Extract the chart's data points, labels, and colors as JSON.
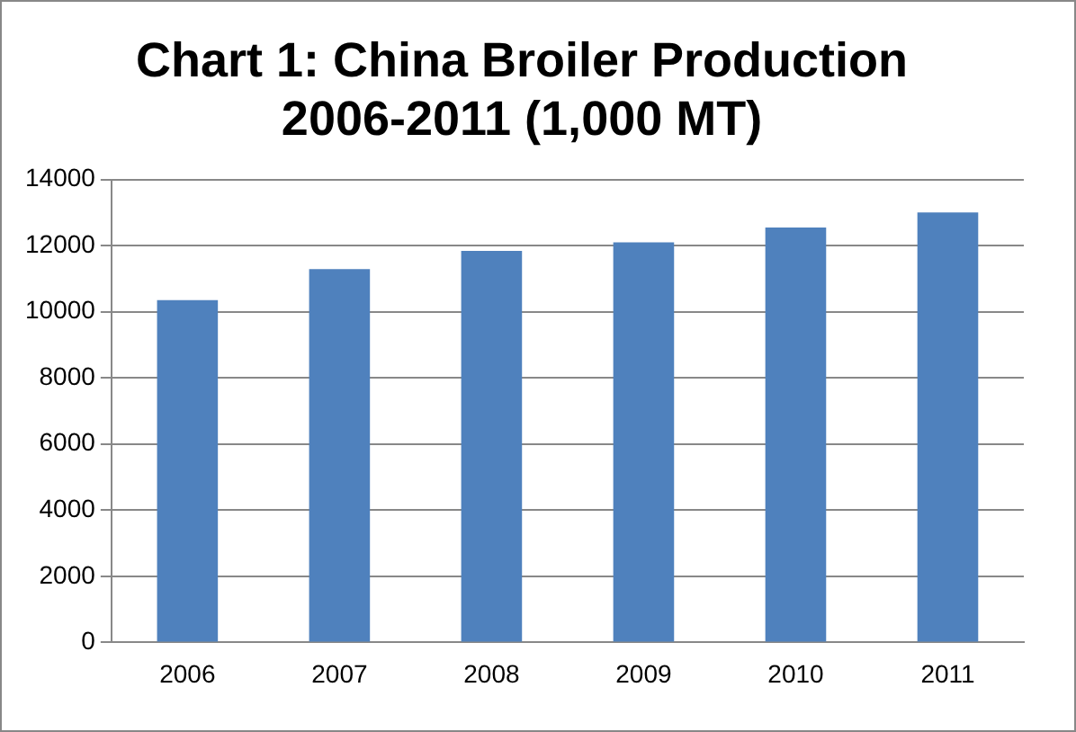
{
  "chart_data": {
    "type": "bar",
    "title": "Chart 1: China Broiler Production 2006-2011 (1,000 MT)",
    "categories": [
      "2006",
      "2007",
      "2008",
      "2009",
      "2010",
      "2011"
    ],
    "values": [
      10350,
      11290,
      11840,
      12100,
      12550,
      13000
    ],
    "color": "#4f81bd",
    "ylim": [
      0,
      14000
    ],
    "yticks": [
      0,
      2000,
      4000,
      6000,
      8000,
      10000,
      12000,
      14000
    ],
    "grid": "y"
  }
}
